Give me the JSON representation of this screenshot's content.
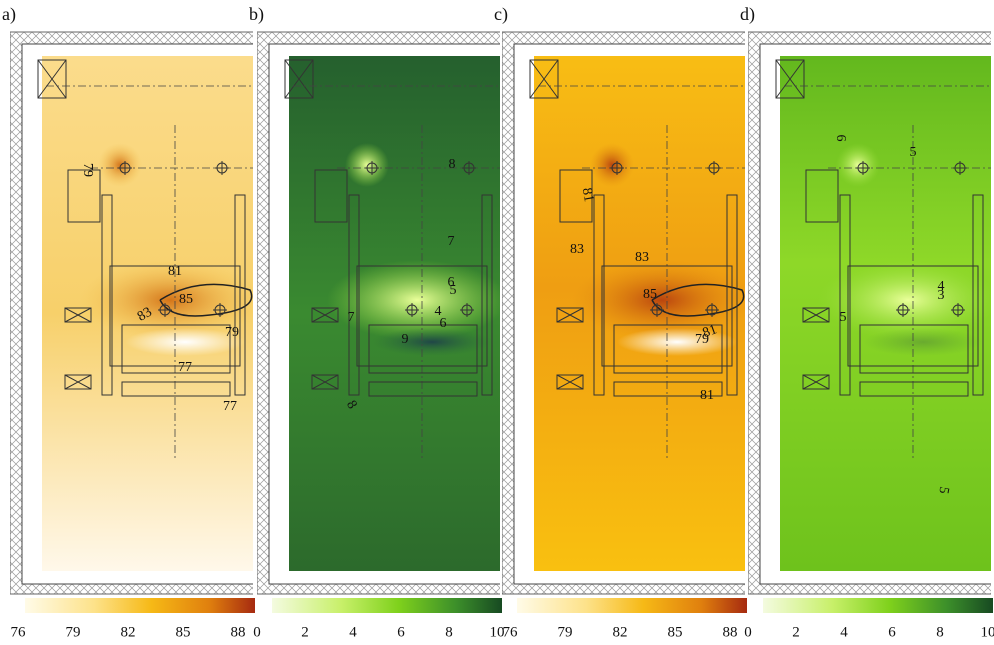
{
  "panels": [
    {
      "label": "a)",
      "colorbar_ticks": [
        76,
        79,
        82,
        85,
        88
      ],
      "contour_labels": [
        "79",
        "81",
        "85",
        "83",
        "79",
        "77",
        "77"
      ]
    },
    {
      "label": "b)",
      "colorbar_ticks": [
        0,
        2,
        4,
        6,
        8,
        10
      ],
      "contour_labels": [
        "8",
        "7",
        "6",
        "5",
        "4",
        "6",
        "9",
        "7",
        "8"
      ]
    },
    {
      "label": "c)",
      "colorbar_ticks": [
        76,
        79,
        82,
        85,
        88
      ],
      "contour_labels": [
        "81",
        "83",
        "83",
        "85",
        "79",
        "81",
        "81"
      ]
    },
    {
      "label": "d)",
      "colorbar_ticks": [
        0,
        2,
        4,
        6,
        8,
        10
      ],
      "contour_labels": [
        "6",
        "5",
        "4",
        "3",
        "5",
        "5"
      ]
    }
  ]
}
